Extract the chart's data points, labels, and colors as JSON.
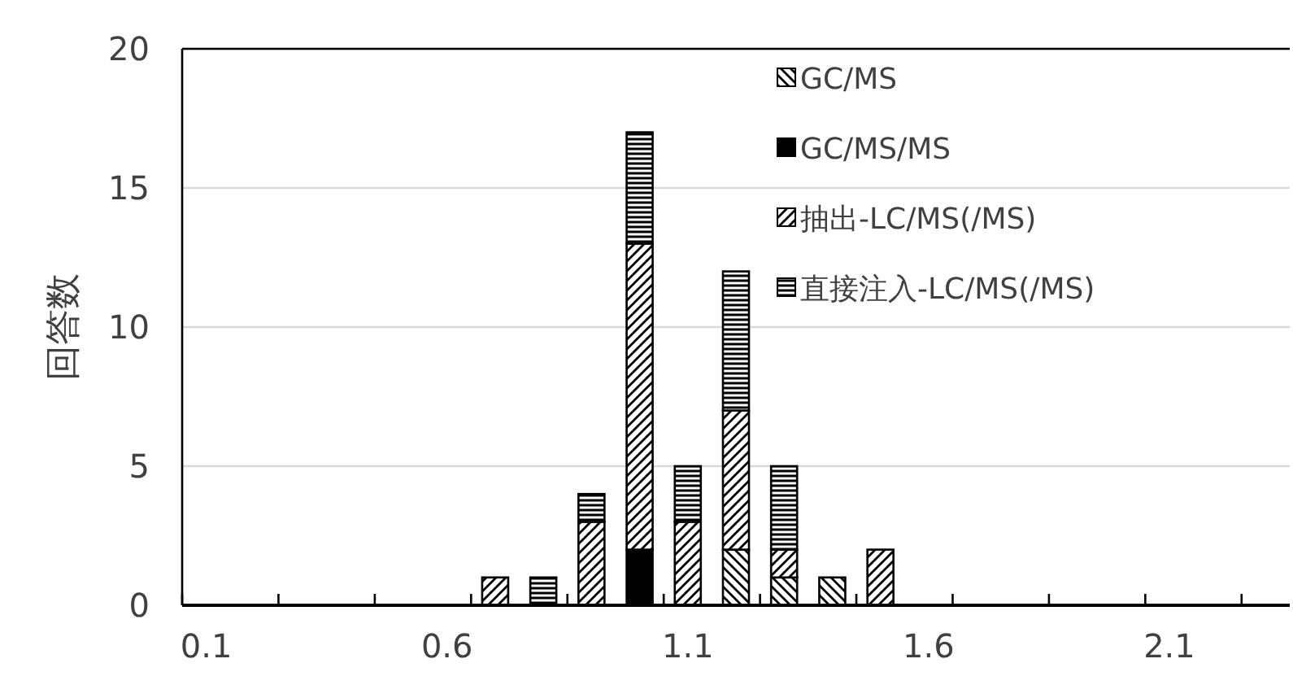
{
  "chart_data": {
    "type": "bar",
    "stacked": true,
    "ylabel": "回答数",
    "categories": [
      "0.1",
      null,
      null,
      null,
      null,
      "0.6",
      null,
      null,
      null,
      null,
      "1.1",
      null,
      null,
      null,
      null,
      "1.6",
      null,
      null,
      null,
      null,
      "2.1",
      null,
      null
    ],
    "series": [
      {
        "name": "GC/MS",
        "color": "#000000",
        "values": [
          0,
          0,
          0,
          0,
          0,
          0,
          0,
          0,
          0,
          0,
          0,
          2,
          1,
          1,
          0,
          0,
          0,
          0,
          0,
          0,
          0,
          0,
          0
        ]
      },
      {
        "name": "GC/MS/MS",
        "color": "#000000",
        "values": [
          0,
          0,
          0,
          0,
          0,
          0,
          0,
          0,
          0,
          2,
          0,
          0,
          0,
          0,
          0,
          0,
          0,
          0,
          0,
          0,
          0,
          0,
          0
        ]
      },
      {
        "name": "抽出-LC/MS(/MS)",
        "color": "#000000",
        "values": [
          0,
          0,
          0,
          0,
          0,
          0,
          1,
          0,
          3,
          11,
          3,
          5,
          1,
          0,
          2,
          0,
          0,
          0,
          0,
          0,
          0,
          0,
          0
        ]
      },
      {
        "name": "直接注入-LC/MS(/MS)",
        "color": "#000000",
        "values": [
          0,
          0,
          0,
          0,
          0,
          0,
          0,
          1,
          1,
          4,
          2,
          5,
          3,
          0,
          0,
          0,
          0,
          0,
          0,
          0,
          0,
          0,
          0
        ]
      }
    ],
    "ylim": [
      0,
      20
    ],
    "yticks": [
      0,
      5,
      10,
      15,
      20
    ],
    "grid": "y",
    "legend": "top right"
  }
}
